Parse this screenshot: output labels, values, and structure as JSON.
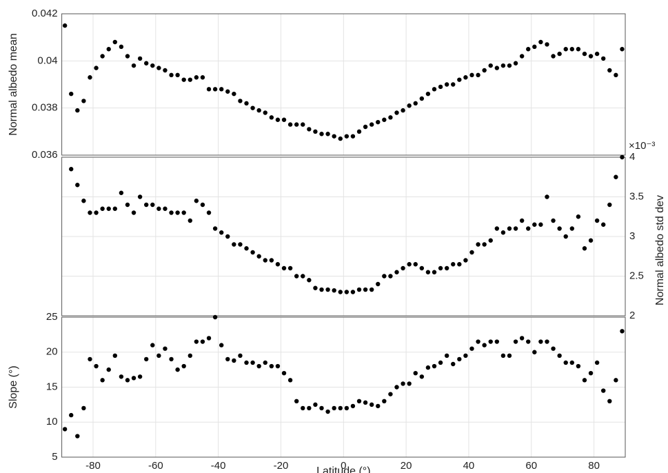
{
  "chart_data": [
    {
      "type": "scatter",
      "ylabel": "Normal albedo mean",
      "color": "#000000",
      "x": [
        -89,
        -87,
        -85,
        -83,
        -81,
        -79,
        -77,
        -75,
        -73,
        -71,
        -69,
        -67,
        -65,
        -63,
        -61,
        -59,
        -57,
        -55,
        -53,
        -51,
        -49,
        -47,
        -45,
        -43,
        -41,
        -39,
        -37,
        -35,
        -33,
        -31,
        -29,
        -27,
        -25,
        -23,
        -21,
        -19,
        -17,
        -15,
        -13,
        -11,
        -9,
        -7,
        -5,
        -3,
        -1,
        1,
        3,
        5,
        7,
        9,
        11,
        13,
        15,
        17,
        19,
        21,
        23,
        25,
        27,
        29,
        31,
        33,
        35,
        37,
        39,
        41,
        43,
        45,
        47,
        49,
        51,
        53,
        55,
        57,
        59,
        61,
        63,
        65,
        67,
        69,
        71,
        73,
        75,
        77,
        79,
        81,
        83,
        85,
        87,
        89
      ],
      "values": [
        0.0415,
        0.0386,
        0.0379,
        0.0383,
        0.0393,
        0.0397,
        0.0402,
        0.0405,
        0.0408,
        0.0406,
        0.0402,
        0.0398,
        0.0401,
        0.0399,
        0.0398,
        0.0397,
        0.0396,
        0.0394,
        0.0394,
        0.0392,
        0.0392,
        0.0393,
        0.0393,
        0.0388,
        0.0388,
        0.0388,
        0.0387,
        0.0386,
        0.0383,
        0.0382,
        0.038,
        0.0379,
        0.0378,
        0.0376,
        0.0375,
        0.0375,
        0.0373,
        0.0373,
        0.0373,
        0.0371,
        0.037,
        0.0369,
        0.0369,
        0.0368,
        0.0367,
        0.0368,
        0.0368,
        0.037,
        0.0372,
        0.0373,
        0.0374,
        0.0375,
        0.0376,
        0.0378,
        0.0379,
        0.0381,
        0.0382,
        0.0384,
        0.0386,
        0.0388,
        0.0389,
        0.039,
        0.039,
        0.0392,
        0.0393,
        0.0394,
        0.0394,
        0.0396,
        0.0398,
        0.0397,
        0.0398,
        0.0398,
        0.0399,
        0.0402,
        0.0405,
        0.0406,
        0.0408,
        0.0407,
        0.0402,
        0.0403,
        0.0405,
        0.0405,
        0.0405,
        0.0403,
        0.0402,
        0.0403,
        0.0401,
        0.0396,
        0.0394,
        0.0405
      ],
      "xlim": [
        -90,
        90
      ],
      "xticks": [
        -80,
        -60,
        -40,
        -20,
        0,
        20,
        40,
        60,
        80
      ],
      "ylim": [
        0.036,
        0.042
      ],
      "yticks": [
        0.036,
        0.038,
        0.04,
        0.042
      ],
      "grid": true
    },
    {
      "type": "scatter",
      "y2label": "Normal albedo std dev",
      "y2_exponent": "×10⁻³",
      "color": "#000000",
      "axis": "y2",
      "x": [
        -89,
        -87,
        -85,
        -83,
        -81,
        -79,
        -77,
        -75,
        -73,
        -71,
        -69,
        -67,
        -65,
        -63,
        -61,
        -59,
        -57,
        -55,
        -53,
        -51,
        -49,
        -47,
        -45,
        -43,
        -41,
        -39,
        -37,
        -35,
        -33,
        -31,
        -29,
        -27,
        -25,
        -23,
        -21,
        -19,
        -17,
        -15,
        -13,
        -11,
        -9,
        -7,
        -5,
        -3,
        -1,
        1,
        3,
        5,
        7,
        9,
        11,
        13,
        15,
        17,
        19,
        21,
        23,
        25,
        27,
        29,
        31,
        33,
        35,
        37,
        39,
        41,
        43,
        45,
        47,
        49,
        51,
        53,
        55,
        57,
        59,
        61,
        63,
        65,
        67,
        69,
        71,
        73,
        75,
        77,
        79,
        81,
        83,
        85,
        87,
        89
      ],
      "values": [
        null,
        3.85,
        3.65,
        3.45,
        3.3,
        3.3,
        3.35,
        3.35,
        3.35,
        3.55,
        3.4,
        3.3,
        3.5,
        3.4,
        3.4,
        3.35,
        3.35,
        3.3,
        3.3,
        3.3,
        3.2,
        3.45,
        3.4,
        3.3,
        3.1,
        3.05,
        3.0,
        2.9,
        2.9,
        2.85,
        2.8,
        2.75,
        2.7,
        2.7,
        2.65,
        2.6,
        2.6,
        2.5,
        2.5,
        2.45,
        2.35,
        2.33,
        2.33,
        2.32,
        2.3,
        2.3,
        2.3,
        2.33,
        2.33,
        2.33,
        2.4,
        2.5,
        2.5,
        2.55,
        2.6,
        2.65,
        2.65,
        2.6,
        2.55,
        2.55,
        2.6,
        2.6,
        2.65,
        2.65,
        2.7,
        2.8,
        2.9,
        2.9,
        2.95,
        3.1,
        3.05,
        3.1,
        3.1,
        3.2,
        3.1,
        3.15,
        3.15,
        3.5,
        3.2,
        3.1,
        3.0,
        3.1,
        3.25,
        2.85,
        2.95,
        3.2,
        3.15,
        3.4,
        3.75,
        4.0
      ],
      "xlim": [
        -90,
        90
      ],
      "xticks": [
        -80,
        -60,
        -40,
        -20,
        0,
        20,
        40,
        60,
        80
      ],
      "y2lim": [
        2,
        4
      ],
      "y2ticks": [
        2,
        2.5,
        3,
        3.5,
        4
      ],
      "grid": true
    },
    {
      "type": "scatter",
      "ylabel": "Slope (°)",
      "xlabel": "Latitude (°)",
      "color": "#000000",
      "x": [
        -89,
        -87,
        -85,
        -83,
        -81,
        -79,
        -77,
        -75,
        -73,
        -71,
        -69,
        -67,
        -65,
        -63,
        -61,
        -59,
        -57,
        -55,
        -53,
        -51,
        -49,
        -47,
        -45,
        -43,
        -41,
        -39,
        -37,
        -35,
        -33,
        -31,
        -29,
        -27,
        -25,
        -23,
        -21,
        -19,
        -17,
        -15,
        -13,
        -11,
        -9,
        -7,
        -5,
        -3,
        -1,
        1,
        3,
        5,
        7,
        9,
        11,
        13,
        15,
        17,
        19,
        21,
        23,
        25,
        27,
        29,
        31,
        33,
        35,
        37,
        39,
        41,
        43,
        45,
        47,
        49,
        51,
        53,
        55,
        57,
        59,
        61,
        63,
        65,
        67,
        69,
        71,
        73,
        75,
        77,
        79,
        81,
        83,
        85,
        87,
        89
      ],
      "values": [
        9,
        11,
        8,
        12,
        19,
        18,
        16,
        17.5,
        19.5,
        16.5,
        16,
        16.3,
        16.5,
        19,
        21,
        19.5,
        20.5,
        19,
        17.5,
        18,
        19.5,
        21.5,
        21.5,
        22,
        25,
        21,
        19,
        18.8,
        19.5,
        18.5,
        18.5,
        18,
        18.5,
        18,
        18,
        17,
        16,
        13,
        12,
        12,
        12.5,
        12,
        11.5,
        12,
        12,
        12,
        12.3,
        13,
        12.8,
        12.5,
        12.3,
        13,
        14,
        15,
        15.5,
        15.5,
        17,
        16.5,
        17.8,
        18,
        18.5,
        19.5,
        18.3,
        19,
        19.5,
        20.5,
        21.5,
        21,
        21.5,
        21.5,
        19.5,
        19.5,
        21.5,
        22,
        21.5,
        20,
        21.5,
        21.5,
        20.5,
        19.5,
        18.5,
        18.5,
        18,
        16,
        17,
        18.5,
        14.5,
        13,
        16,
        23
      ],
      "xlim": [
        -90,
        90
      ],
      "xticks": [
        -80,
        -60,
        -40,
        -20,
        0,
        20,
        40,
        60,
        80
      ],
      "ylim": [
        5,
        25
      ],
      "yticks": [
        5,
        10,
        15,
        20,
        25
      ],
      "grid": true
    }
  ]
}
